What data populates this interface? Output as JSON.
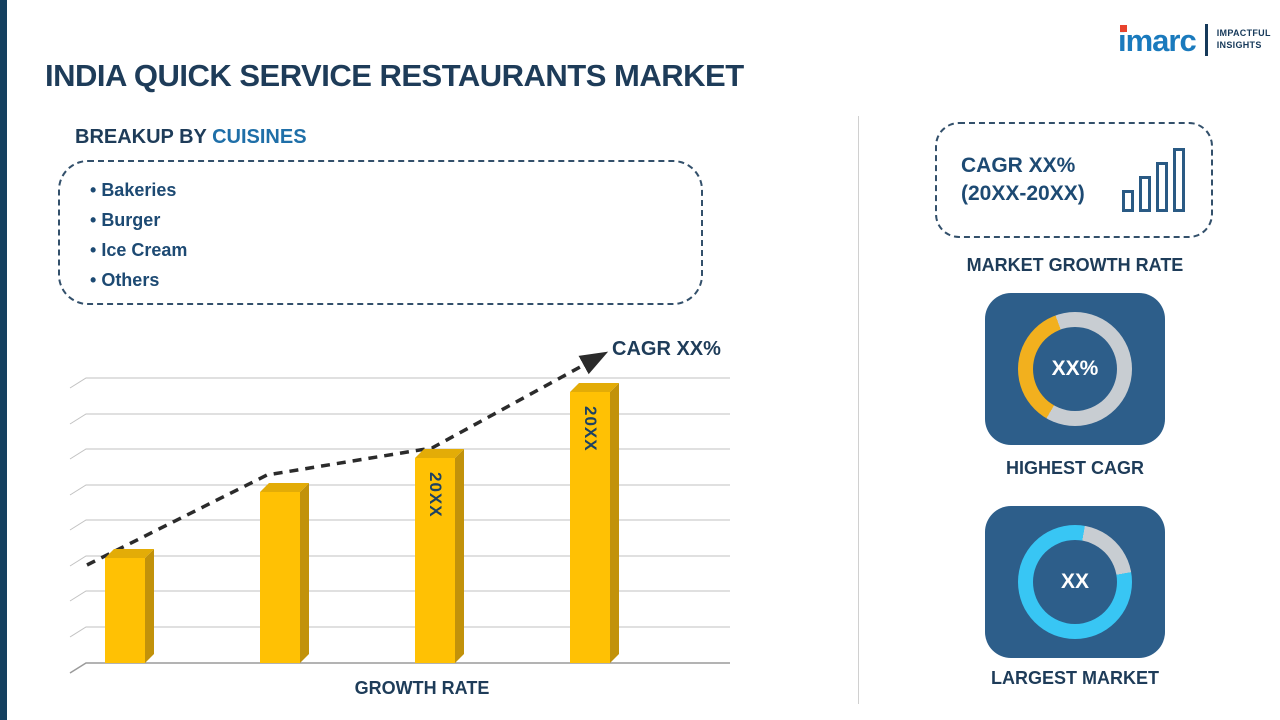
{
  "header": {
    "title": "INDIA QUICK SERVICE RESTAURANTS MARKET"
  },
  "logo": {
    "brand": "imarc",
    "tagline1": "IMPACTFUL",
    "tagline2": "INSIGHTS"
  },
  "breakup": {
    "label": "BREAKUP BY",
    "highlight": "CUISINES",
    "items": [
      "Bakeries",
      "Burger",
      "Ice Cream",
      "Others"
    ]
  },
  "chart_data": {
    "type": "bar",
    "title": "GROWTH RATE",
    "xlabel": "GROWTH RATE",
    "ylabel": "",
    "categories": [
      "",
      "",
      "20XX",
      "20XX"
    ],
    "bar_labels": [
      "",
      "",
      "20XX",
      "20XX"
    ],
    "values": [
      37,
      60,
      72,
      95
    ],
    "ylim": [
      0,
      100
    ],
    "grid": true,
    "bar_color": "#FFC104",
    "trend": {
      "label": "CAGR XX%",
      "style": "dashed-ascending-arrow"
    }
  },
  "right_panel": {
    "growth_card": {
      "line1": "CAGR XX%",
      "line2": "(20XX-20XX)"
    },
    "market_growth_caption": "MARKET GROWTH RATE",
    "highest_cagr": {
      "value": "XX%",
      "caption": "HIGHEST CAGR"
    },
    "largest_market": {
      "value": "XX",
      "caption": "LARGEST MARKET"
    }
  },
  "colors": {
    "navy_text": "#1e3c59",
    "blue_highlight": "#1f6fa8",
    "bar_gold": "#FFC104",
    "donut_yellow": "#F2B01E",
    "donut_cyan": "#38C6F4",
    "tile_blue": "#2D5E8A",
    "ring_gray": "#C8CDD2",
    "brand_blue": "#1A7ABD",
    "brand_red": "#E8432D"
  }
}
